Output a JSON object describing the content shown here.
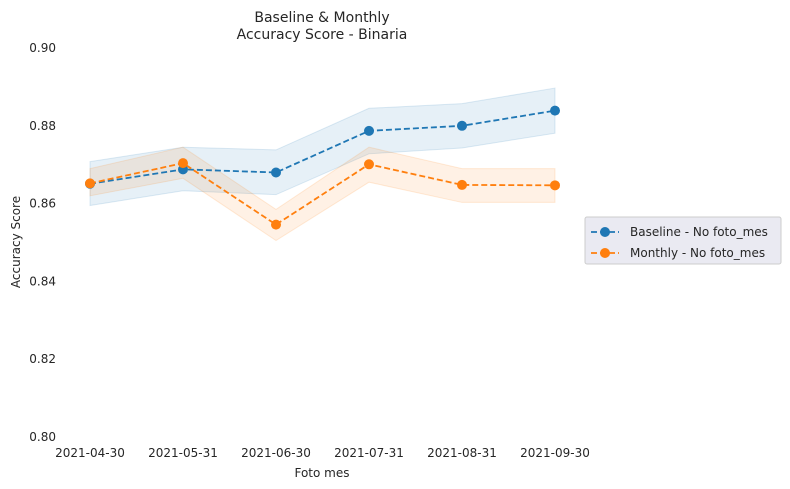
{
  "chart_data": {
    "type": "line",
    "title_line1": "Baseline & Monthly",
    "title_line2": "Accuracy Score - Binaria",
    "xlabel": "Foto mes",
    "ylabel": "Accuracy Score",
    "categories": [
      "2021-04-30",
      "2021-05-31",
      "2021-06-30",
      "2021-07-31",
      "2021-08-31",
      "2021-09-30"
    ],
    "ylim": [
      0.8,
      0.9
    ],
    "yticks": [
      0.8,
      0.82,
      0.84,
      0.86,
      0.88,
      0.9
    ],
    "ytick_labels": [
      "0.80",
      "0.82",
      "0.84",
      "0.86",
      "0.88",
      "0.90"
    ],
    "grid": false,
    "legend_position": "right",
    "series": [
      {
        "name": "Baseline - No foto_mes",
        "color": "#1f77b4",
        "values": [
          0.8651,
          0.8688,
          0.868,
          0.8787,
          0.88,
          0.8839
        ],
        "lower": [
          0.8595,
          0.8633,
          0.8623,
          0.8728,
          0.8743,
          0.8781
        ],
        "upper": [
          0.8708,
          0.8745,
          0.8738,
          0.8845,
          0.8857,
          0.8897
        ]
      },
      {
        "name": "Monthly - No foto_mes",
        "color": "#ff7f0e",
        "values": [
          0.8652,
          0.8704,
          0.8546,
          0.8701,
          0.8648,
          0.8647
        ],
        "lower": [
          0.862,
          0.8665,
          0.8505,
          0.8655,
          0.8603,
          0.8603
        ],
        "upper": [
          0.869,
          0.8745,
          0.8585,
          0.8745,
          0.869,
          0.869
        ]
      }
    ]
  }
}
